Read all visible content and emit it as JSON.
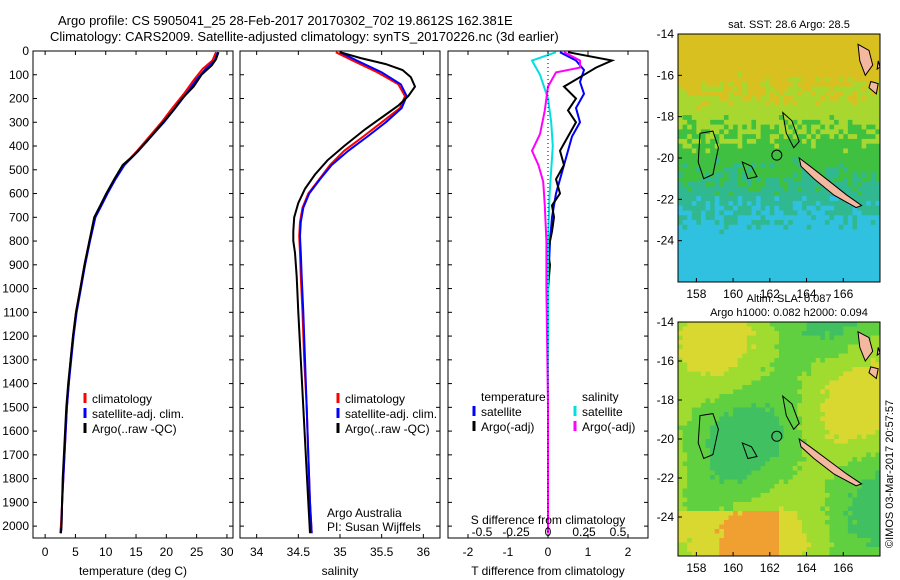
{
  "header": {
    "line1": "Argo profile: CS 5905041_25 28-Feb-2017 20170302_702 19.8612S 162.381E",
    "line2": "Climatology: CARS2009. Satellite-adjusted climatology: synTS_20170226.nc (3d earlier)"
  },
  "credit": {
    "org": "Argo Australia",
    "pi": "PI: Susan Wijffels",
    "imos": "©IMOS 03-Mar-2017 20:57:57"
  },
  "colors": {
    "climatology": "#ff0000",
    "satellite": "#0000ff",
    "argo": "#000000",
    "s_satellite": "#00e0e0",
    "s_argo": "#ff00ff",
    "land": "#f4b8a0"
  },
  "chart_data": [
    {
      "type": "line",
      "id": "temperature",
      "xlabel": "temperature (deg C)",
      "ylabel": "",
      "xlim": [
        -2,
        31
      ],
      "ylim": [
        2050,
        0
      ],
      "xticks": [
        0,
        5,
        10,
        15,
        20,
        25,
        30
      ],
      "yticks": [
        0,
        100,
        200,
        300,
        400,
        500,
        600,
        700,
        800,
        900,
        1000,
        1100,
        1200,
        1300,
        1400,
        1500,
        1600,
        1700,
        1800,
        1900,
        2000
      ],
      "legend": [
        "climatology",
        "satellite-adj. clim.",
        "Argo(..raw -QC)"
      ],
      "series": [
        {
          "name": "climatology",
          "color": "#ff0000",
          "points": [
            [
              28.2,
              5
            ],
            [
              27.6,
              40
            ],
            [
              26.0,
              75
            ],
            [
              24.6,
              120
            ],
            [
              22.9,
              180
            ],
            [
              21.0,
              240
            ],
            [
              19.2,
              300
            ],
            [
              17.2,
              360
            ],
            [
              15.2,
              420
            ],
            [
              13.0,
              480
            ],
            [
              11.5,
              540
            ],
            [
              10.2,
              600
            ],
            [
              9.2,
              650
            ],
            [
              8.2,
              700
            ],
            [
              7.3,
              800
            ],
            [
              6.5,
              900
            ],
            [
              5.8,
              1000
            ],
            [
              5.1,
              1100
            ],
            [
              4.6,
              1200
            ],
            [
              4.2,
              1300
            ],
            [
              3.9,
              1400
            ],
            [
              3.6,
              1500
            ],
            [
              3.4,
              1600
            ],
            [
              3.2,
              1700
            ],
            [
              3.0,
              1800
            ],
            [
              2.8,
              1900
            ],
            [
              2.6,
              2000
            ],
            [
              2.5,
              2030
            ]
          ]
        },
        {
          "name": "satellite-adj. clim.",
          "color": "#0000ff",
          "points": [
            [
              28.5,
              5
            ],
            [
              28.0,
              40
            ],
            [
              26.5,
              75
            ],
            [
              25.0,
              120
            ],
            [
              23.3,
              180
            ],
            [
              21.5,
              240
            ],
            [
              19.6,
              300
            ],
            [
              17.5,
              360
            ],
            [
              15.4,
              420
            ],
            [
              13.1,
              480
            ],
            [
              11.6,
              540
            ],
            [
              10.3,
              600
            ],
            [
              9.3,
              650
            ],
            [
              8.3,
              700
            ],
            [
              7.4,
              800
            ],
            [
              6.6,
              900
            ],
            [
              5.9,
              1000
            ],
            [
              5.2,
              1100
            ],
            [
              4.7,
              1200
            ],
            [
              4.3,
              1300
            ],
            [
              3.9,
              1400
            ],
            [
              3.6,
              1500
            ],
            [
              3.4,
              1600
            ],
            [
              3.2,
              1700
            ],
            [
              3.0,
              1800
            ],
            [
              2.8,
              1900
            ],
            [
              2.7,
              2000
            ],
            [
              2.6,
              2030
            ]
          ]
        },
        {
          "name": "Argo(..raw -QC)",
          "color": "#000000",
          "points": [
            [
              28.6,
              5
            ],
            [
              28.2,
              35
            ],
            [
              27.5,
              60
            ],
            [
              25.8,
              100
            ],
            [
              24.5,
              150
            ],
            [
              22.6,
              200
            ],
            [
              20.8,
              260
            ],
            [
              18.8,
              320
            ],
            [
              16.8,
              380
            ],
            [
              14.6,
              440
            ],
            [
              12.8,
              480
            ],
            [
              11.4,
              540
            ],
            [
              10.1,
              600
            ],
            [
              9.1,
              650
            ],
            [
              8.1,
              700
            ],
            [
              7.3,
              800
            ],
            [
              6.5,
              900
            ],
            [
              5.8,
              1000
            ],
            [
              5.1,
              1100
            ],
            [
              4.6,
              1200
            ],
            [
              4.2,
              1300
            ],
            [
              3.8,
              1400
            ],
            [
              3.5,
              1500
            ],
            [
              3.3,
              1600
            ],
            [
              3.1,
              1700
            ],
            [
              2.9,
              1800
            ],
            [
              2.8,
              1900
            ],
            [
              2.7,
              2000
            ],
            [
              2.6,
              2030
            ]
          ]
        }
      ]
    },
    {
      "type": "line",
      "id": "salinity",
      "xlabel": "salinity",
      "xlim": [
        33.8,
        36.2
      ],
      "ylim": [
        2050,
        0
      ],
      "xticks": [
        34,
        34.5,
        35,
        35.5,
        36
      ],
      "legend": [
        "climatology",
        "satellite-adj. clim.",
        "Argo(..raw -QC)"
      ],
      "series": [
        {
          "name": "climatology",
          "color": "#ff0000",
          "points": [
            [
              34.95,
              5
            ],
            [
              35.15,
              40
            ],
            [
              35.45,
              90
            ],
            [
              35.7,
              140
            ],
            [
              35.78,
              190
            ],
            [
              35.72,
              240
            ],
            [
              35.5,
              300
            ],
            [
              35.28,
              360
            ],
            [
              35.05,
              420
            ],
            [
              34.88,
              480
            ],
            [
              34.75,
              540
            ],
            [
              34.62,
              600
            ],
            [
              34.55,
              660
            ],
            [
              34.52,
              720
            ],
            [
              34.51,
              780
            ],
            [
              34.52,
              850
            ],
            [
              34.53,
              950
            ],
            [
              34.55,
              1100
            ],
            [
              34.57,
              1300
            ],
            [
              34.6,
              1500
            ],
            [
              34.62,
              1700
            ],
            [
              34.64,
              1900
            ],
            [
              34.66,
              2030
            ]
          ]
        },
        {
          "name": "satellite-adj. clim.",
          "color": "#0000ff",
          "points": [
            [
              35.0,
              5
            ],
            [
              35.2,
              40
            ],
            [
              35.5,
              90
            ],
            [
              35.73,
              140
            ],
            [
              35.8,
              190
            ],
            [
              35.74,
              240
            ],
            [
              35.55,
              300
            ],
            [
              35.33,
              360
            ],
            [
              35.1,
              420
            ],
            [
              34.9,
              480
            ],
            [
              34.76,
              540
            ],
            [
              34.63,
              600
            ],
            [
              34.56,
              660
            ],
            [
              34.53,
              720
            ],
            [
              34.52,
              780
            ],
            [
              34.53,
              850
            ],
            [
              34.54,
              950
            ],
            [
              34.56,
              1100
            ],
            [
              34.58,
              1300
            ],
            [
              34.6,
              1500
            ],
            [
              34.62,
              1700
            ],
            [
              34.64,
              1900
            ],
            [
              34.66,
              2030
            ]
          ]
        },
        {
          "name": "Argo(..raw -QC)",
          "color": "#000000",
          "points": [
            [
              35.0,
              5
            ],
            [
              35.25,
              30
            ],
            [
              35.55,
              55
            ],
            [
              35.75,
              80
            ],
            [
              35.85,
              110
            ],
            [
              35.9,
              150
            ],
            [
              35.82,
              190
            ],
            [
              35.7,
              230
            ],
            [
              35.5,
              280
            ],
            [
              35.3,
              330
            ],
            [
              35.05,
              400
            ],
            [
              34.85,
              460
            ],
            [
              34.7,
              520
            ],
            [
              34.58,
              580
            ],
            [
              34.5,
              640
            ],
            [
              34.45,
              700
            ],
            [
              34.44,
              760
            ],
            [
              34.44,
              800
            ],
            [
              34.46,
              850
            ],
            [
              34.48,
              950
            ],
            [
              34.5,
              1100
            ],
            [
              34.53,
              1300
            ],
            [
              34.56,
              1500
            ],
            [
              34.59,
              1700
            ],
            [
              34.62,
              1900
            ],
            [
              34.64,
              2030
            ]
          ]
        }
      ]
    },
    {
      "type": "line",
      "id": "difference",
      "xlabel": "T difference from climatology",
      "xlabel_top": "S difference from climatology",
      "xlim": [
        -2.5,
        2.5
      ],
      "ylim": [
        2050,
        0
      ],
      "xticks": [
        -2,
        -1,
        0,
        1,
        2
      ],
      "xticks_s": [
        -0.5,
        -0.25,
        0,
        0.25,
        0.5
      ],
      "legend_headers": [
        "temperature",
        "salinity"
      ],
      "legend": [
        "satellite",
        "Argo(-adj)",
        "satellite",
        "Argo(-adj)"
      ],
      "series": [
        {
          "name": "temperature satellite",
          "color": "#0000ff",
          "points": [
            [
              0.3,
              5
            ],
            [
              0.7,
              40
            ],
            [
              0.9,
              80
            ],
            [
              0.8,
              130
            ],
            [
              0.9,
              180
            ],
            [
              0.7,
              240
            ],
            [
              0.8,
              300
            ],
            [
              0.6,
              360
            ],
            [
              0.5,
              420
            ],
            [
              0.4,
              480
            ],
            [
              0.3,
              540
            ],
            [
              0.2,
              600
            ],
            [
              0.1,
              700
            ],
            [
              0.05,
              800
            ],
            [
              0.0,
              1000
            ],
            [
              0.0,
              1500
            ],
            [
              0.0,
              2000
            ],
            [
              0.0,
              2030
            ]
          ]
        },
        {
          "name": "temperature Argo(-adj)",
          "color": "#000000",
          "points": [
            [
              0.5,
              5
            ],
            [
              1.6,
              40
            ],
            [
              1.2,
              70
            ],
            [
              0.9,
              100
            ],
            [
              0.4,
              150
            ],
            [
              0.7,
              200
            ],
            [
              0.5,
              250
            ],
            [
              0.7,
              300
            ],
            [
              0.5,
              360
            ],
            [
              0.3,
              420
            ],
            [
              0.4,
              480
            ],
            [
              0.2,
              540
            ],
            [
              0.3,
              600
            ],
            [
              0.1,
              650
            ],
            [
              0.15,
              700
            ],
            [
              0.1,
              760
            ],
            [
              0.05,
              800
            ],
            [
              0.0,
              850
            ],
            [
              0.05,
              900
            ],
            [
              0.0,
              1000
            ],
            [
              0.0,
              1500
            ],
            [
              0.0,
              2000
            ],
            [
              0.0,
              2030
            ]
          ]
        },
        {
          "name": "salinity satellite",
          "color": "#00e0e0",
          "points": [
            [
              0.05,
              5
            ],
            [
              -0.1,
              40
            ],
            [
              -0.05,
              100
            ],
            [
              0.0,
              200
            ],
            [
              0.02,
              300
            ],
            [
              0.03,
              400
            ],
            [
              0.02,
              500
            ],
            [
              0.01,
              600
            ],
            [
              0.0,
              800
            ],
            [
              0.0,
              1200
            ],
            [
              0.0,
              2030
            ]
          ]
        },
        {
          "name": "salinity Argo(-adj)",
          "color": "#ff00ff",
          "points": [
            [
              0.1,
              5
            ],
            [
              0.2,
              40
            ],
            [
              0.2,
              70
            ],
            [
              0.05,
              90
            ],
            [
              0.0,
              150
            ],
            [
              -0.02,
              250
            ],
            [
              -0.05,
              350
            ],
            [
              -0.1,
              420
            ],
            [
              -0.06,
              480
            ],
            [
              -0.03,
              550
            ],
            [
              -0.02,
              650
            ],
            [
              -0.01,
              800
            ],
            [
              -0.01,
              1000
            ],
            [
              0.0,
              1500
            ],
            [
              0.0,
              2030
            ]
          ]
        }
      ]
    },
    {
      "type": "heatmap",
      "id": "sst-map",
      "title": "sat. SST: 28.6  Argo: 28.5",
      "xlim": [
        157,
        168
      ],
      "ylim": [
        -26,
        -14
      ],
      "xticks": [
        158,
        160,
        162,
        164,
        166
      ],
      "yticks": [
        -14,
        -16,
        -18,
        -20,
        -22,
        -24
      ],
      "argo_position": [
        162.381,
        -19.8612
      ]
    },
    {
      "type": "heatmap",
      "id": "sla-map",
      "title": "Altim. SLA: 0.087",
      "subtitle": "Argo h1000: 0.082 h2000: 0.094",
      "xlim": [
        157,
        168
      ],
      "ylim": [
        -26,
        -14
      ],
      "xticks": [
        158,
        160,
        162,
        164,
        166
      ],
      "yticks": [
        -14,
        -16,
        -18,
        -20,
        -22,
        -24
      ],
      "argo_position": [
        162.381,
        -19.8612
      ]
    }
  ]
}
